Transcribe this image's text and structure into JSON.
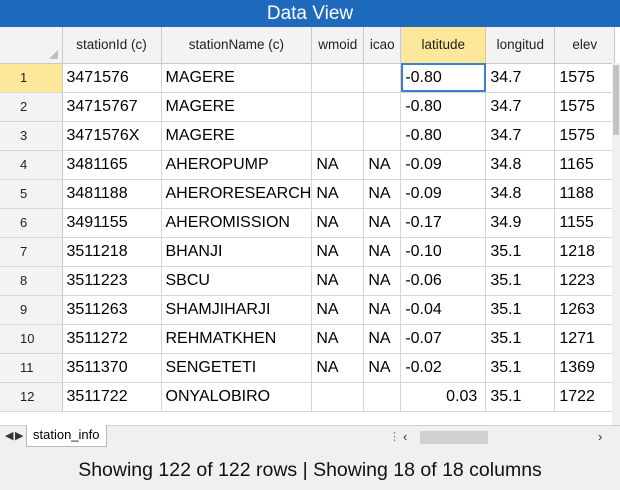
{
  "window": {
    "title": "Data View"
  },
  "columns": [
    {
      "key": "stationId",
      "label": "stationId (c)"
    },
    {
      "key": "stationName",
      "label": "stationName (c)"
    },
    {
      "key": "wmoid",
      "label": "wmoid"
    },
    {
      "key": "icao",
      "label": "icao"
    },
    {
      "key": "latitude",
      "label": "latitude"
    },
    {
      "key": "longitud",
      "label": "longitud"
    },
    {
      "key": "elev",
      "label": "elev"
    }
  ],
  "rows": [
    {
      "num": "1",
      "cells": [
        "3471576",
        "MAGERE",
        "",
        "",
        "-0.80",
        "34.7",
        "1575"
      ]
    },
    {
      "num": "2",
      "cells": [
        "34715767",
        "MAGERE",
        "",
        "",
        "-0.80",
        "34.7",
        "1575"
      ]
    },
    {
      "num": "3",
      "cells": [
        "3471576X",
        "MAGERE",
        "",
        "",
        "-0.80",
        "34.7",
        "1575"
      ]
    },
    {
      "num": "4",
      "cells": [
        "3481165",
        "AHEROPUMP",
        "NA",
        "NA",
        "-0.09",
        "34.8",
        "1165"
      ]
    },
    {
      "num": "5",
      "cells": [
        "3481188",
        "AHERORESEARCH",
        "NA",
        "NA",
        "-0.09",
        "34.8",
        "1188"
      ]
    },
    {
      "num": "6",
      "cells": [
        "3491155",
        "AHEROMISSION",
        "NA",
        "NA",
        "-0.17",
        "34.9",
        "1155"
      ]
    },
    {
      "num": "7",
      "cells": [
        "3511218",
        "BHANJI",
        "NA",
        "NA",
        "-0.10",
        "35.1",
        "1218"
      ]
    },
    {
      "num": "8",
      "cells": [
        "3511223",
        "SBCU",
        "NA",
        "NA",
        "-0.06",
        "35.1",
        "1223"
      ]
    },
    {
      "num": "9",
      "cells": [
        "3511263",
        "SHAMJIHARJI",
        "NA",
        "NA",
        "-0.04",
        "35.1",
        "1263"
      ]
    },
    {
      "num": "10",
      "cells": [
        "3511272",
        "REHMATKHEN",
        "NA",
        "NA",
        "-0.07",
        "35.1",
        "1271"
      ]
    },
    {
      "num": "11",
      "cells": [
        "3511370",
        "SENGETETI",
        "NA",
        "NA",
        "-0.02",
        "35.1",
        "1369"
      ]
    },
    {
      "num": "12",
      "cells": [
        "3511722",
        "ONYALOBIRO",
        "",
        "",
        "0.03",
        "35.1",
        "1722"
      ]
    }
  ],
  "sheet": {
    "tab_label": "station_info"
  },
  "status": {
    "text": "Showing 122 of 122 rows | Showing 18 of 18 columns"
  },
  "colors": {
    "title_bg": "#1e6bbd",
    "highlight": "#fde79a",
    "selection": "#3a7fd5"
  }
}
